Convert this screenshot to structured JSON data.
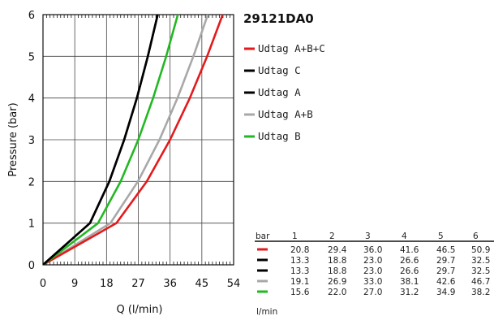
{
  "chart_data": {
    "type": "line",
    "title": "29121DA0",
    "xlabel": "Q (l/min)",
    "ylabel": "Pressure (bar)",
    "xlim": [
      0,
      54
    ],
    "ylim": [
      0,
      6
    ],
    "xticks": [
      0,
      9,
      18,
      27,
      36,
      45,
      54
    ],
    "yticks": [
      0,
      1,
      2,
      3,
      4,
      5,
      6
    ],
    "grid": true,
    "legend_position": "right",
    "series": [
      {
        "name": "Udtag A+B+C",
        "color": "#e31a1c",
        "x": [
          20.8,
          29.4,
          36.0,
          41.6,
          46.5,
          50.9
        ],
        "y": [
          1,
          2,
          3,
          4,
          5,
          6
        ]
      },
      {
        "name": "Udtag C",
        "color": "#000000",
        "x": [
          13.3,
          18.8,
          23.0,
          26.6,
          29.7,
          32.5
        ],
        "y": [
          1,
          2,
          3,
          4,
          5,
          6
        ]
      },
      {
        "name": "Udtag A",
        "color": "#000000",
        "x": [
          13.3,
          18.8,
          23.0,
          26.6,
          29.7,
          32.5
        ],
        "y": [
          1,
          2,
          3,
          4,
          5,
          6
        ]
      },
      {
        "name": "Udtag A+B",
        "color": "#a8a8a8",
        "x": [
          19.1,
          26.9,
          33.0,
          38.1,
          42.6,
          46.7
        ],
        "y": [
          1,
          2,
          3,
          4,
          5,
          6
        ]
      },
      {
        "name": "Udtag B",
        "color": "#22b822",
        "x": [
          15.6,
          22.0,
          27.0,
          31.2,
          34.9,
          38.2
        ],
        "y": [
          1,
          2,
          3,
          4,
          5,
          6
        ]
      }
    ],
    "table": {
      "header_label": "bar",
      "unit_label": "l/min",
      "columns": [
        "1",
        "2",
        "3",
        "4",
        "5",
        "6"
      ],
      "rows": [
        {
          "color": "#e31a1c",
          "values": [
            "20.8",
            "29.4",
            "36.0",
            "41.6",
            "46.5",
            "50.9"
          ]
        },
        {
          "color": "#000000",
          "values": [
            "13.3",
            "18.8",
            "23.0",
            "26.6",
            "29.7",
            "32.5"
          ]
        },
        {
          "color": "#000000",
          "values": [
            "13.3",
            "18.8",
            "23.0",
            "26.6",
            "29.7",
            "32.5"
          ]
        },
        {
          "color": "#a8a8a8",
          "values": [
            "19.1",
            "26.9",
            "33.0",
            "38.1",
            "42.6",
            "46.7"
          ]
        },
        {
          "color": "#22b822",
          "values": [
            "15.6",
            "22.0",
            "27.0",
            "31.2",
            "34.9",
            "38.2"
          ]
        }
      ]
    }
  }
}
